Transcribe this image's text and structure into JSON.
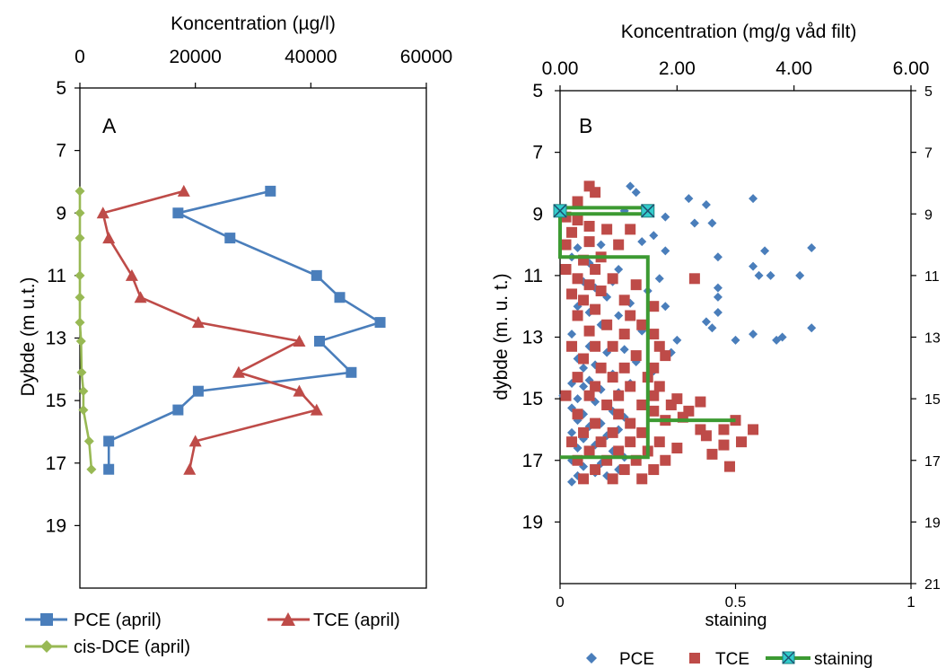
{
  "chart_data": [
    {
      "type": "line",
      "panel_label": "A",
      "title": "Koncentration (µg/l)",
      "ylabel": "Dybde (m u.t.)",
      "xlim": [
        0,
        60000
      ],
      "ylim": [
        5,
        21
      ],
      "y_inverted": true,
      "x_axis_position": "top",
      "x_ticks": [
        "0",
        "20000",
        "40000",
        "60000"
      ],
      "y_ticks": [
        "5",
        "7",
        "9",
        "11",
        "13",
        "15",
        "17",
        "19"
      ],
      "legend_position": "bottom",
      "series": [
        {
          "name": "PCE (april)",
          "color": "#4a7ebb",
          "marker": "square",
          "points": [
            [
              33000,
              8.3
            ],
            [
              17000,
              9.0
            ],
            [
              26000,
              9.8
            ],
            [
              41000,
              11.0
            ],
            [
              45000,
              11.7
            ],
            [
              52000,
              12.5
            ],
            [
              41500,
              13.1
            ],
            [
              47000,
              14.1
            ],
            [
              20500,
              14.7
            ],
            [
              17000,
              15.3
            ],
            [
              5000,
              16.3
            ],
            [
              5000,
              17.2
            ]
          ]
        },
        {
          "name": "TCE (april)",
          "color": "#be4b48",
          "marker": "triangle",
          "points": [
            [
              18000,
              8.3
            ],
            [
              4000,
              9.0
            ],
            [
              5000,
              9.8
            ],
            [
              9000,
              11.0
            ],
            [
              10500,
              11.7
            ],
            [
              20500,
              12.5
            ],
            [
              38000,
              13.1
            ],
            [
              27500,
              14.1
            ],
            [
              38000,
              14.7
            ],
            [
              41000,
              15.3
            ],
            [
              20000,
              16.3
            ],
            [
              19000,
              17.2
            ]
          ]
        },
        {
          "name": "cis-DCE (april)",
          "color": "#98b954",
          "marker": "diamond",
          "points": [
            [
              0,
              8.3
            ],
            [
              0,
              9.0
            ],
            [
              0,
              9.8
            ],
            [
              0,
              11.0
            ],
            [
              0,
              11.7
            ],
            [
              0,
              12.5
            ],
            [
              200,
              13.1
            ],
            [
              300,
              14.1
            ],
            [
              600,
              14.7
            ],
            [
              600,
              15.3
            ],
            [
              1600,
              16.3
            ],
            [
              2000,
              17.2
            ]
          ]
        }
      ]
    },
    {
      "type": "scatter",
      "panel_label": "B",
      "title": "Koncentration (mg/g våd  filt)",
      "ylabel": "dybde (m. u. t.)",
      "x2label": "staining",
      "xlim": [
        0,
        6
      ],
      "x2lim": [
        0,
        1
      ],
      "ylim": [
        5,
        21
      ],
      "y2lim": [
        5,
        21
      ],
      "y_inverted": true,
      "x_ticks": [
        "0.00",
        "2.00",
        "4.00",
        "6.00"
      ],
      "x2_ticks": [
        "0",
        "0.5",
        "1"
      ],
      "y_ticks": [
        "5",
        "7",
        "9",
        "11",
        "13",
        "15",
        "17",
        "19"
      ],
      "y2_ticks": [
        "5",
        "7",
        "9",
        "11",
        "13",
        "15",
        "17",
        "19",
        "21"
      ],
      "legend_position": "bottom",
      "series": [
        {
          "name": "PCE",
          "color": "#4a7ebb",
          "marker": "diamond",
          "points": [
            [
              1.2,
              8.1
            ],
            [
              1.3,
              8.3
            ],
            [
              2.2,
              8.5
            ],
            [
              3.3,
              8.5
            ],
            [
              2.5,
              8.7
            ],
            [
              1.1,
              8.9
            ],
            [
              1.8,
              9.1
            ],
            [
              2.3,
              9.3
            ],
            [
              2.6,
              9.3
            ],
            [
              1.6,
              9.7
            ],
            [
              1.4,
              9.9
            ],
            [
              0.7,
              10.0
            ],
            [
              0.3,
              10.1
            ],
            [
              1.8,
              10.2
            ],
            [
              3.5,
              10.2
            ],
            [
              4.3,
              10.1
            ],
            [
              2.7,
              10.4
            ],
            [
              0.2,
              10.4
            ],
            [
              0.5,
              10.6
            ],
            [
              3.3,
              10.7
            ],
            [
              1.0,
              10.8
            ],
            [
              3.4,
              11.0
            ],
            [
              3.6,
              11.0
            ],
            [
              4.1,
              11.0
            ],
            [
              1.7,
              11.1
            ],
            [
              0.9,
              11.2
            ],
            [
              0.4,
              11.2
            ],
            [
              0.6,
              11.4
            ],
            [
              2.7,
              11.4
            ],
            [
              1.5,
              11.5
            ],
            [
              2.7,
              11.7
            ],
            [
              0.8,
              11.7
            ],
            [
              1.2,
              11.9
            ],
            [
              0.3,
              12.0
            ],
            [
              1.8,
              12.0
            ],
            [
              0.5,
              12.2
            ],
            [
              2.7,
              12.2
            ],
            [
              1.0,
              12.3
            ],
            [
              2.5,
              12.5
            ],
            [
              0.7,
              12.6
            ],
            [
              2.6,
              12.7
            ],
            [
              4.3,
              12.7
            ],
            [
              1.4,
              12.8
            ],
            [
              0.2,
              12.9
            ],
            [
              3.3,
              12.9
            ],
            [
              3.8,
              13.0
            ],
            [
              3.0,
              13.1
            ],
            [
              2.0,
              13.1
            ],
            [
              3.7,
              13.1
            ],
            [
              0.5,
              13.3
            ],
            [
              1.1,
              13.4
            ],
            [
              0.8,
              13.5
            ],
            [
              1.9,
              13.5
            ],
            [
              0.3,
              13.7
            ],
            [
              1.3,
              13.8
            ],
            [
              0.6,
              13.9
            ],
            [
              0.4,
              14.0
            ],
            [
              1.6,
              14.1
            ],
            [
              0.9,
              14.2
            ],
            [
              0.3,
              14.3
            ],
            [
              0.5,
              14.4
            ],
            [
              0.2,
              14.5
            ],
            [
              1.2,
              14.5
            ],
            [
              0.4,
              14.6
            ],
            [
              0.7,
              14.7
            ],
            [
              1.0,
              14.8
            ],
            [
              0.05,
              14.9
            ],
            [
              0.3,
              15.0
            ],
            [
              0.6,
              15.1
            ],
            [
              1.4,
              15.2
            ],
            [
              0.2,
              15.3
            ],
            [
              0.9,
              15.4
            ],
            [
              0.4,
              15.5
            ],
            [
              1.1,
              15.6
            ],
            [
              0.3,
              15.7
            ],
            [
              0.7,
              15.8
            ],
            [
              0.5,
              15.9
            ],
            [
              1.0,
              16.0
            ],
            [
              0.2,
              16.1
            ],
            [
              0.8,
              16.2
            ],
            [
              0.4,
              16.3
            ],
            [
              1.2,
              16.4
            ],
            [
              0.6,
              16.5
            ],
            [
              0.3,
              16.6
            ],
            [
              0.9,
              16.7
            ],
            [
              0.5,
              16.8
            ],
            [
              1.1,
              16.9
            ],
            [
              0.2,
              17.0
            ],
            [
              0.7,
              17.1
            ],
            [
              0.4,
              17.2
            ],
            [
              1.0,
              17.3
            ],
            [
              0.6,
              17.4
            ],
            [
              0.3,
              17.5
            ],
            [
              0.8,
              17.5
            ],
            [
              0.2,
              17.7
            ]
          ]
        },
        {
          "name": "TCE",
          "color": "#be4b48",
          "marker": "square",
          "points": [
            [
              0.5,
              8.1
            ],
            [
              0.6,
              8.3
            ],
            [
              0.3,
              8.6
            ],
            [
              0.1,
              9.1
            ],
            [
              0.3,
              9.2
            ],
            [
              0.5,
              9.4
            ],
            [
              0.2,
              9.6
            ],
            [
              0.8,
              9.5
            ],
            [
              1.2,
              9.5
            ],
            [
              0.5,
              9.9
            ],
            [
              0.1,
              10.0
            ],
            [
              1.0,
              10.0
            ],
            [
              0.7,
              10.4
            ],
            [
              0.4,
              10.5
            ],
            [
              0.1,
              10.8
            ],
            [
              0.6,
              10.8
            ],
            [
              0.3,
              11.1
            ],
            [
              0.9,
              11.1
            ],
            [
              2.3,
              11.1
            ],
            [
              0.5,
              11.3
            ],
            [
              1.3,
              11.3
            ],
            [
              0.2,
              11.6
            ],
            [
              0.7,
              11.5
            ],
            [
              0.4,
              11.8
            ],
            [
              1.1,
              11.8
            ],
            [
              0.6,
              12.1
            ],
            [
              1.6,
              12.0
            ],
            [
              0.3,
              12.3
            ],
            [
              1.2,
              12.3
            ],
            [
              0.8,
              12.6
            ],
            [
              1.4,
              12.6
            ],
            [
              0.5,
              12.8
            ],
            [
              1.1,
              12.9
            ],
            [
              1.6,
              12.9
            ],
            [
              0.2,
              13.3
            ],
            [
              0.6,
              13.3
            ],
            [
              0.9,
              13.3
            ],
            [
              1.7,
              13.3
            ],
            [
              0.4,
              13.7
            ],
            [
              1.3,
              13.6
            ],
            [
              1.8,
              13.6
            ],
            [
              0.7,
              14.0
            ],
            [
              1.1,
              14.0
            ],
            [
              1.6,
              14.0
            ],
            [
              0.3,
              14.3
            ],
            [
              0.9,
              14.3
            ],
            [
              1.5,
              14.3
            ],
            [
              0.6,
              14.6
            ],
            [
              1.2,
              14.6
            ],
            [
              1.7,
              14.6
            ],
            [
              0.1,
              14.9
            ],
            [
              0.5,
              14.9
            ],
            [
              1.0,
              14.9
            ],
            [
              1.6,
              14.9
            ],
            [
              2.0,
              15.0
            ],
            [
              0.8,
              15.2
            ],
            [
              1.4,
              15.2
            ],
            [
              1.9,
              15.2
            ],
            [
              2.4,
              15.1
            ],
            [
              0.3,
              15.5
            ],
            [
              1.0,
              15.5
            ],
            [
              1.6,
              15.4
            ],
            [
              2.2,
              15.4
            ],
            [
              0.6,
              15.8
            ],
            [
              1.2,
              15.8
            ],
            [
              1.8,
              15.7
            ],
            [
              2.1,
              15.6
            ],
            [
              3.0,
              15.7
            ],
            [
              0.4,
              16.1
            ],
            [
              0.9,
              16.1
            ],
            [
              1.4,
              16.1
            ],
            [
              2.4,
              16.0
            ],
            [
              2.8,
              16.0
            ],
            [
              3.3,
              16.0
            ],
            [
              0.2,
              16.4
            ],
            [
              0.7,
              16.4
            ],
            [
              1.2,
              16.4
            ],
            [
              1.7,
              16.4
            ],
            [
              2.5,
              16.2
            ],
            [
              2.8,
              16.5
            ],
            [
              3.1,
              16.4
            ],
            [
              0.5,
              16.7
            ],
            [
              1.0,
              16.7
            ],
            [
              1.5,
              16.7
            ],
            [
              2.0,
              16.6
            ],
            [
              2.6,
              16.8
            ],
            [
              0.3,
              17.0
            ],
            [
              0.8,
              17.0
            ],
            [
              1.3,
              17.0
            ],
            [
              1.8,
              17.0
            ],
            [
              2.9,
              17.2
            ],
            [
              0.6,
              17.3
            ],
            [
              1.1,
              17.3
            ],
            [
              1.6,
              17.3
            ],
            [
              0.4,
              17.6
            ],
            [
              0.9,
              17.6
            ],
            [
              1.4,
              17.6
            ]
          ]
        },
        {
          "name": "staining",
          "color": "#3c9a32",
          "marker_color": "#33cccc",
          "marker": "x-square",
          "axis": "secondary",
          "points": [
            [
              0,
              8.8
            ],
            [
              0.25,
              8.8
            ],
            [
              0.25,
              9.0
            ],
            [
              0,
              9.0
            ],
            [
              0,
              10.4
            ],
            [
              0.25,
              10.4
            ],
            [
              0.25,
              15.7
            ],
            [
              0.5,
              15.7
            ],
            [
              0.25,
              15.7
            ],
            [
              0.25,
              16.9
            ],
            [
              0,
              16.9
            ]
          ]
        }
      ]
    }
  ]
}
